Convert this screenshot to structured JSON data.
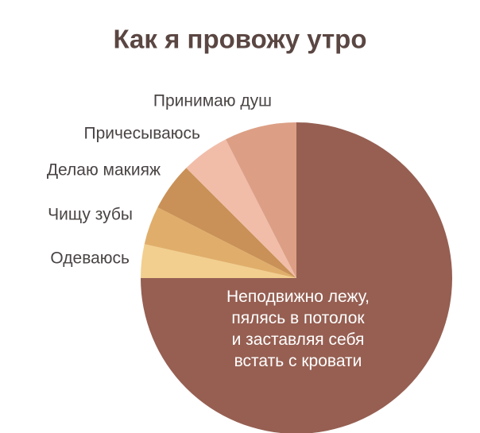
{
  "chart_data": {
    "type": "pie",
    "title": "Как я провожу утро",
    "categories": [
      "Неподвижно лежу,\nпялясь в потолок\nи заставляя себя\nвстать с кровати",
      "Одеваюсь",
      "Чищу зубы",
      "Делаю макияж",
      "Причесываюсь",
      "Принимаю душ"
    ],
    "values": [
      75,
      3.5,
      4,
      5,
      5,
      7.5
    ],
    "colors": [
      "#965f52",
      "#f2cf8e",
      "#e0ae6a",
      "#c99157",
      "#f1bda9",
      "#dc9f85"
    ]
  }
}
